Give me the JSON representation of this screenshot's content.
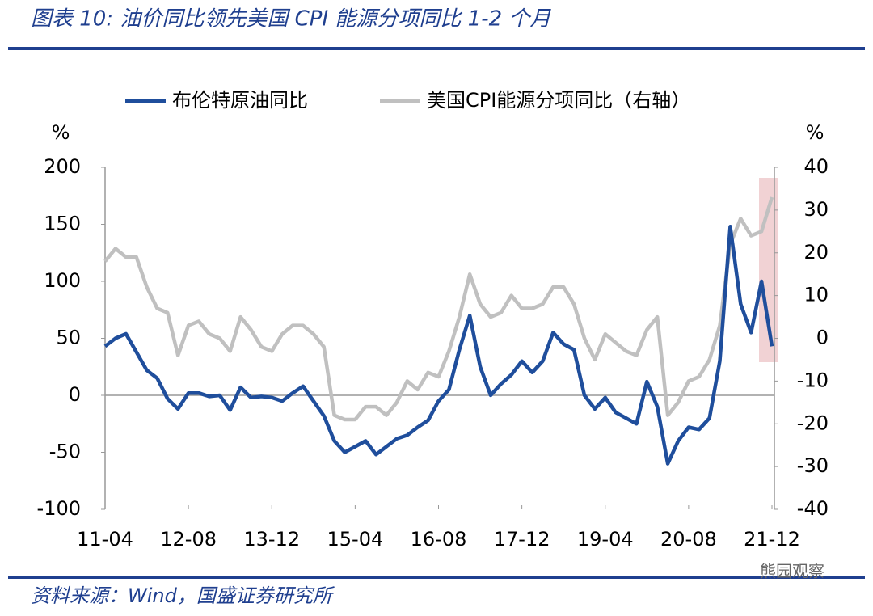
{
  "chart_data": {
    "type": "line",
    "title": "图表 10: 油价同比领先美国 CPI 能源分项同比 1-2 个月",
    "y_label": "%",
    "y2_label": "%",
    "categories": [
      "11-04",
      null,
      null,
      null,
      null,
      null,
      null,
      null,
      "12-08",
      null,
      null,
      null,
      null,
      null,
      null,
      null,
      "13-12",
      null,
      null,
      null,
      null,
      null,
      null,
      null,
      "15-04",
      null,
      null,
      null,
      null,
      null,
      null,
      null,
      "16-08",
      null,
      null,
      null,
      null,
      null,
      null,
      null,
      "17-12",
      null,
      null,
      null,
      null,
      null,
      null,
      null,
      "19-04",
      null,
      null,
      null,
      null,
      null,
      null,
      null,
      "20-08",
      null,
      null,
      null,
      null,
      null,
      null,
      null,
      "21-12"
    ],
    "series": [
      {
        "name": "布伦特原油同比",
        "color": "#1f4e9c",
        "values": [
          43,
          50,
          54,
          38,
          22,
          15,
          -3,
          -12,
          2,
          2,
          -1,
          0,
          -13,
          7,
          -2,
          -1,
          -2,
          -5,
          2,
          8,
          -5,
          -18,
          -40,
          -50,
          -45,
          -40,
          -52,
          -45,
          -38,
          -35,
          -28,
          -22,
          -5,
          5,
          40,
          70,
          25,
          0,
          10,
          18,
          30,
          20,
          30,
          55,
          45,
          40,
          0,
          -12,
          -2,
          -15,
          -20,
          -25,
          12,
          -10,
          -60,
          -40,
          -28,
          -30,
          -20,
          30,
          148,
          80,
          55,
          100,
          43
        ]
      },
      {
        "name": "美国CPI能源分项同比（右轴）",
        "color": "#c0c0c0",
        "axis": "y2",
        "values": [
          18,
          21,
          19,
          19,
          12,
          7,
          6,
          -4,
          3,
          4,
          1,
          0,
          -3,
          5,
          2,
          -2,
          -3,
          1,
          3,
          3,
          1,
          -2,
          -18,
          -19,
          -19,
          -16,
          -16,
          -18,
          -15,
          -10,
          -12,
          -8,
          -9,
          -3,
          5,
          15,
          8,
          5,
          6,
          10,
          7,
          7,
          8,
          12,
          12,
          8,
          0,
          -5,
          1,
          -1,
          -3,
          -4,
          2,
          5,
          -18,
          -15,
          -10,
          -9,
          -5,
          3,
          22,
          28,
          24,
          25,
          33
        ]
      }
    ],
    "ylim": [
      -100,
      200
    ],
    "yticks": [
      -100,
      -50,
      0,
      50,
      100,
      150,
      200
    ],
    "y2lim": [
      -40,
      40
    ],
    "y2ticks": [
      -40,
      -30,
      -20,
      -10,
      0,
      10,
      20,
      30,
      40
    ]
  },
  "footer": {
    "source": "资料来源：Wind，国盛证券研究所",
    "watermark": "熊园观察"
  }
}
